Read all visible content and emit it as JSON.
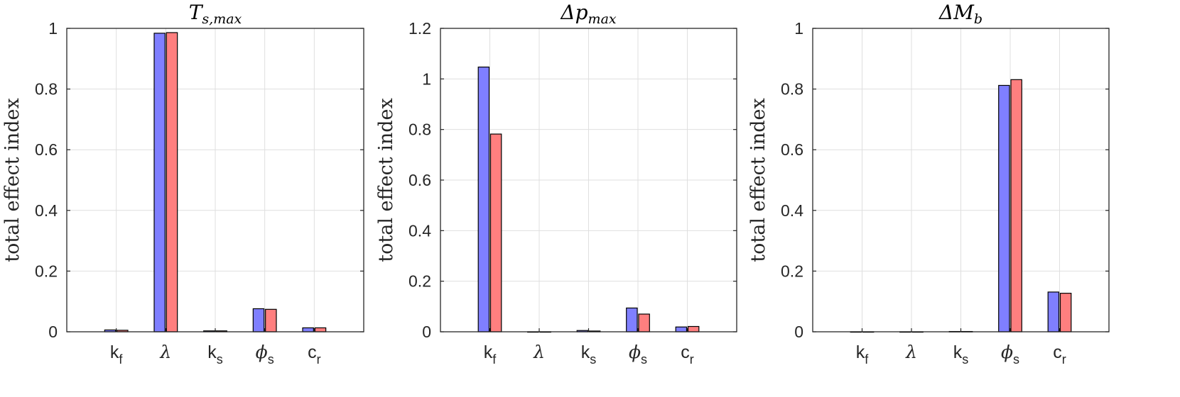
{
  "chart_data": [
    {
      "type": "bar",
      "title": "T_{s,max}",
      "ylabel": "total effect index",
      "ylim": [
        0,
        1
      ],
      "yticks": [
        "0",
        "0.2",
        "0.4",
        "0.6",
        "0.8",
        "1"
      ],
      "categories": [
        "k_f",
        "λ",
        "k_s",
        "ϕ_s",
        "c_r"
      ],
      "grid": true,
      "series": [
        {
          "values": [
            0.006,
            0.984,
            0.003,
            0.076,
            0.013
          ]
        },
        {
          "values": [
            0.005,
            0.986,
            0.003,
            0.074,
            0.013
          ]
        }
      ]
    },
    {
      "type": "bar",
      "title": "Δp_{max}",
      "ylabel": "total effect index",
      "ylim": [
        0,
        1.2
      ],
      "yticks": [
        "0",
        "0.2",
        "0.4",
        "0.6",
        "0.8",
        "1",
        "1.2"
      ],
      "categories": [
        "k_f",
        "λ",
        "k_s",
        "ϕ_s",
        "c_r"
      ],
      "grid": true,
      "series": [
        {
          "values": [
            1.047,
            0.0,
            0.005,
            0.094,
            0.019
          ]
        },
        {
          "values": [
            0.782,
            0.0,
            0.003,
            0.07,
            0.021
          ]
        }
      ]
    },
    {
      "type": "bar",
      "title": "ΔM_b",
      "ylabel": "total effect index",
      "ylim": [
        0,
        1
      ],
      "yticks": [
        "0",
        "0.2",
        "0.4",
        "0.6",
        "0.8",
        "1"
      ],
      "categories": [
        "k_f",
        "λ",
        "k_s",
        "ϕ_s",
        "c_r"
      ],
      "grid": true,
      "series": [
        {
          "values": [
            0.0,
            0.0,
            0.001,
            0.812,
            0.131
          ]
        },
        {
          "values": [
            0.0,
            0.0,
            0.001,
            0.831,
            0.127
          ]
        }
      ]
    }
  ],
  "colors": {
    "series_1_fill": "#7f7fff",
    "series_2_fill": "#ff7f7f",
    "bar_edge": "#000000",
    "axis": "#262626",
    "grid": "#dfdfdf"
  }
}
